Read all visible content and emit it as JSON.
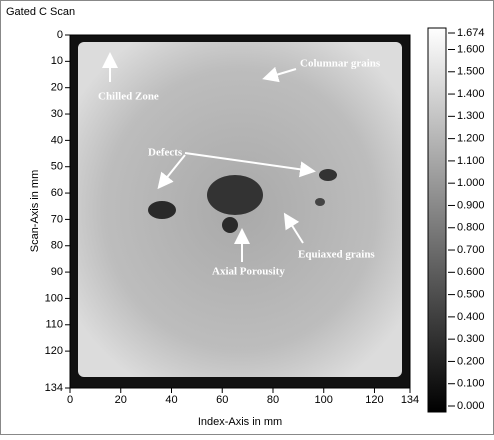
{
  "chart_data": {
    "type": "heatmap",
    "title": "Gated C Scan",
    "x_label": "Index-Axis in mm",
    "y_label": "Scan-Axis in mm",
    "xlim": [
      0,
      134
    ],
    "xticks": [
      0,
      20,
      40,
      60,
      80,
      100,
      120,
      134
    ],
    "ylim": [
      0,
      134
    ],
    "y_inverted": true,
    "yticks": [
      0,
      10,
      20,
      30,
      40,
      50,
      60,
      70,
      80,
      90,
      100,
      110,
      120,
      134
    ],
    "colorbar": {
      "lim": [
        0,
        1.674
      ],
      "ticks": [
        1.674,
        {
          "value": 1.6,
          "label": "1.600"
        },
        {
          "value": 1.5,
          "label": "1.500"
        },
        {
          "value": 1.4,
          "label": "1.400"
        },
        {
          "value": 1.3,
          "label": "1.300"
        },
        {
          "value": 1.2,
          "label": "1.200"
        },
        {
          "value": 1.1,
          "label": "1.100"
        },
        {
          "value": 1,
          "label": "1.000"
        },
        {
          "value": 0.9,
          "label": "0.900"
        },
        {
          "value": 0.8,
          "label": "0.800"
        },
        {
          "value": 0.7,
          "label": "0.700"
        },
        {
          "value": 0.6,
          "label": "0.600"
        },
        {
          "value": 0.5,
          "label": "0.500"
        },
        {
          "value": 0.4,
          "label": "0.400"
        },
        {
          "value": 0.3,
          "label": "0.300"
        },
        {
          "value": 0.2,
          "label": "0.200"
        },
        {
          "value": 0.1,
          "label": "0.100"
        },
        {
          "value": 0,
          "label": "0.000"
        }
      ]
    },
    "annotations": [
      "Columnar grains",
      "Chilled Zone",
      "Defects",
      "Equiaxed grains",
      "Axial Porousity"
    ]
  }
}
